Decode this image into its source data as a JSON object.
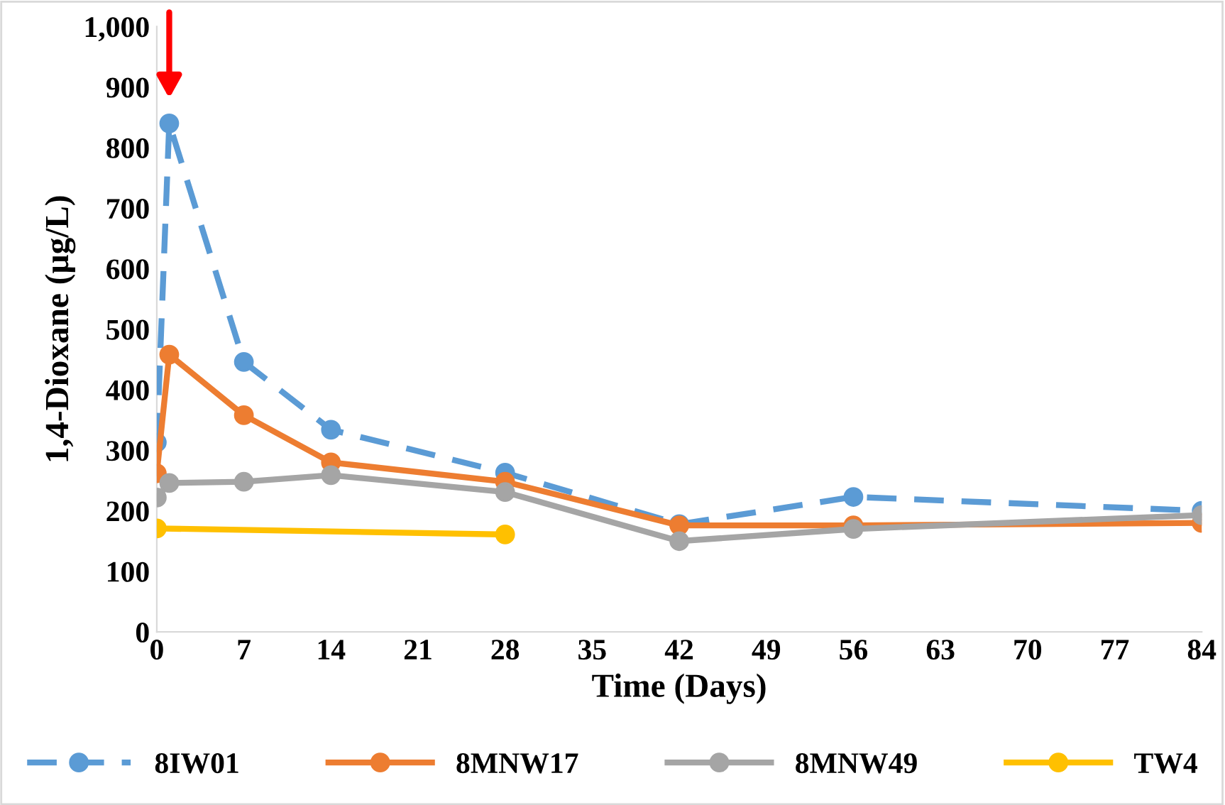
{
  "chart_data": {
    "type": "line",
    "xlabel": "Time (Days)",
    "ylabel": "1,4-Dioxane (µg/L)",
    "xlim": [
      0,
      84
    ],
    "xticks": [
      0,
      7,
      14,
      21,
      28,
      35,
      42,
      49,
      56,
      63,
      70,
      77,
      84
    ],
    "ylim": [
      0,
      1000
    ],
    "yticks": [
      0,
      100,
      200,
      300,
      400,
      500,
      600,
      700,
      800,
      900,
      {
        "value": 1000,
        "label": "1,000"
      }
    ],
    "grid": false,
    "legend": "bottom",
    "marker": "circle",
    "series": [
      {
        "name": "8IW01",
        "color": "#5b9bd5",
        "line_style": "dashed",
        "x": [
          0,
          1,
          7,
          14,
          28,
          42,
          56,
          84
        ],
        "values": [
          313,
          840,
          446,
          334,
          263,
          178,
          223,
          200
        ]
      },
      {
        "name": "8MNW17",
        "color": "#ed7d31",
        "line_style": "solid",
        "x": [
          0,
          1,
          7,
          14,
          28,
          42,
          56,
          84
        ],
        "values": [
          262,
          458,
          358,
          280,
          248,
          176,
          176,
          180
        ]
      },
      {
        "name": "8MNW49",
        "color": "#a5a5a5",
        "line_style": "solid",
        "x": [
          0,
          1,
          7,
          14,
          28,
          42,
          56,
          84
        ],
        "values": [
          222,
          246,
          248,
          259,
          231,
          150,
          170,
          193
        ]
      },
      {
        "name": "TW4",
        "color": "#ffc000",
        "line_style": "solid",
        "x": [
          0,
          28
        ],
        "values": [
          171,
          161
        ]
      }
    ]
  }
}
